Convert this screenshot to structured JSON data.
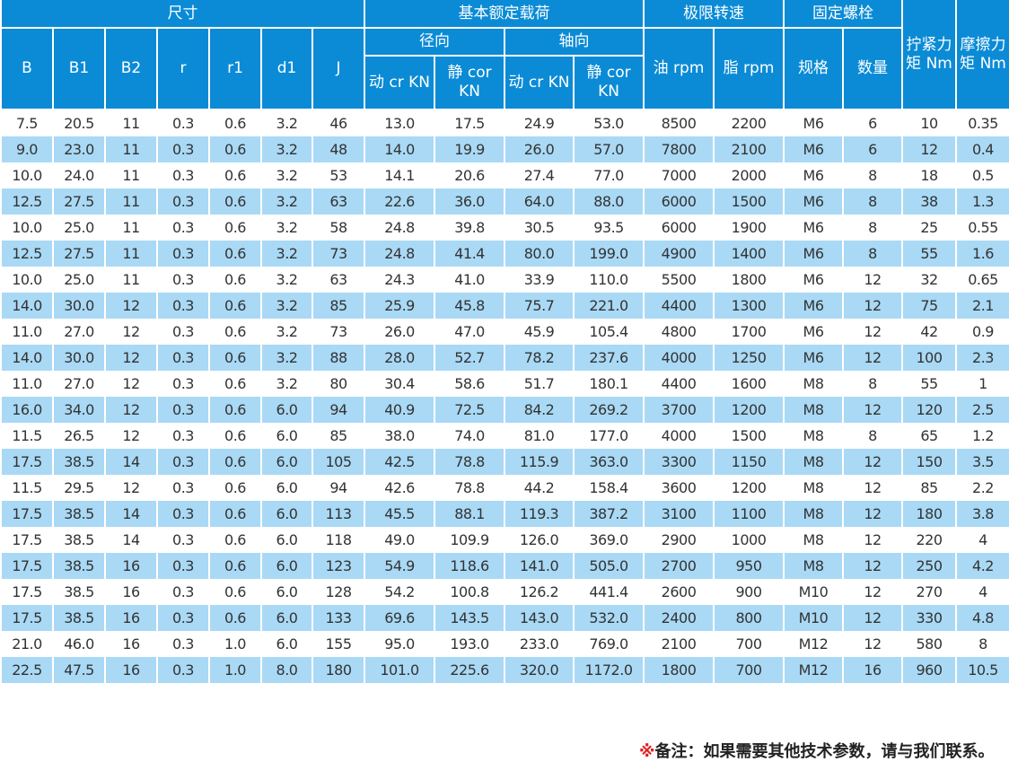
{
  "header": {
    "size": "尺寸",
    "load": "基本额定载荷",
    "speed": "极限转速",
    "bolt": "固定螺栓",
    "tighten": "拧紧力矩 Nm",
    "friction": "摩擦力矩 Nm",
    "radial": "径向",
    "axial": "轴向",
    "cols": [
      "B",
      "B1",
      "B2",
      "r",
      "r1",
      "d1",
      "J"
    ],
    "dyn": "动 cr KN",
    "stat": "静 cor KN",
    "oil": "油 rpm",
    "grease": "脂 rpm",
    "spec": "规格",
    "qty": "数量"
  },
  "colors": {
    "header": "#0b8bd6",
    "alt_row": "#a9d9f5"
  },
  "rows": [
    [
      "7.5",
      "20.5",
      "11",
      "0.3",
      "0.6",
      "3.2",
      "46",
      "13.0",
      "17.5",
      "24.9",
      "53.0",
      "8500",
      "2200",
      "M6",
      "6",
      "10",
      "0.35"
    ],
    [
      "9.0",
      "23.0",
      "11",
      "0.3",
      "0.6",
      "3.2",
      "48",
      "14.0",
      "19.9",
      "26.0",
      "57.0",
      "7800",
      "2100",
      "M6",
      "6",
      "12",
      "0.4"
    ],
    [
      "10.0",
      "24.0",
      "11",
      "0.3",
      "0.6",
      "3.2",
      "53",
      "14.1",
      "20.6",
      "27.4",
      "77.0",
      "7000",
      "2000",
      "M6",
      "8",
      "18",
      "0.5"
    ],
    [
      "12.5",
      "27.5",
      "11",
      "0.3",
      "0.6",
      "3.2",
      "63",
      "22.6",
      "36.0",
      "64.0",
      "88.0",
      "6000",
      "1500",
      "M6",
      "8",
      "38",
      "1.3"
    ],
    [
      "10.0",
      "25.0",
      "11",
      "0.3",
      "0.6",
      "3.2",
      "58",
      "24.8",
      "39.8",
      "30.5",
      "93.5",
      "6000",
      "1900",
      "M6",
      "8",
      "25",
      "0.55"
    ],
    [
      "12.5",
      "27.5",
      "11",
      "0.3",
      "0.6",
      "3.2",
      "73",
      "24.8",
      "41.4",
      "80.0",
      "199.0",
      "4900",
      "1400",
      "M6",
      "8",
      "55",
      "1.6"
    ],
    [
      "10.0",
      "25.0",
      "11",
      "0.3",
      "0.6",
      "3.2",
      "63",
      "24.3",
      "41.0",
      "33.9",
      "110.0",
      "5500",
      "1800",
      "M6",
      "12",
      "32",
      "0.65"
    ],
    [
      "14.0",
      "30.0",
      "12",
      "0.3",
      "0.6",
      "3.2",
      "85",
      "25.9",
      "45.8",
      "75.7",
      "221.0",
      "4400",
      "1300",
      "M6",
      "12",
      "75",
      "2.1"
    ],
    [
      "11.0",
      "27.0",
      "12",
      "0.3",
      "0.6",
      "3.2",
      "73",
      "26.0",
      "47.0",
      "45.9",
      "105.4",
      "4800",
      "1700",
      "M6",
      "12",
      "42",
      "0.9"
    ],
    [
      "14.0",
      "30.0",
      "12",
      "0.3",
      "0.6",
      "3.2",
      "88",
      "28.0",
      "52.7",
      "78.2",
      "237.6",
      "4000",
      "1250",
      "M6",
      "12",
      "100",
      "2.3"
    ],
    [
      "11.0",
      "27.0",
      "12",
      "0.3",
      "0.6",
      "3.2",
      "80",
      "30.4",
      "58.6",
      "51.7",
      "180.1",
      "4400",
      "1600",
      "M8",
      "8",
      "55",
      "1"
    ],
    [
      "16.0",
      "34.0",
      "12",
      "0.3",
      "0.6",
      "6.0",
      "94",
      "40.9",
      "72.5",
      "84.2",
      "269.2",
      "3700",
      "1200",
      "M8",
      "12",
      "120",
      "2.5"
    ],
    [
      "11.5",
      "26.5",
      "12",
      "0.3",
      "0.6",
      "6.0",
      "85",
      "38.0",
      "74.0",
      "81.0",
      "177.0",
      "4000",
      "1500",
      "M8",
      "8",
      "65",
      "1.2"
    ],
    [
      "17.5",
      "38.5",
      "14",
      "0.3",
      "0.6",
      "6.0",
      "105",
      "42.5",
      "78.8",
      "115.9",
      "363.0",
      "3300",
      "1150",
      "M8",
      "12",
      "150",
      "3.5"
    ],
    [
      "11.5",
      "29.5",
      "12",
      "0.3",
      "0.6",
      "6.0",
      "94",
      "42.6",
      "78.8",
      "44.2",
      "158.4",
      "3600",
      "1200",
      "M8",
      "12",
      "85",
      "2.2"
    ],
    [
      "17.5",
      "38.5",
      "14",
      "0.3",
      "0.6",
      "6.0",
      "113",
      "45.5",
      "88.1",
      "119.3",
      "387.2",
      "3100",
      "1100",
      "M8",
      "12",
      "180",
      "3.8"
    ],
    [
      "17.5",
      "38.5",
      "14",
      "0.3",
      "0.6",
      "6.0",
      "118",
      "49.0",
      "109.9",
      "126.0",
      "369.0",
      "2900",
      "1000",
      "M8",
      "12",
      "220",
      "4"
    ],
    [
      "17.5",
      "38.5",
      "16",
      "0.3",
      "0.6",
      "6.0",
      "123",
      "54.9",
      "118.6",
      "141.0",
      "505.0",
      "2700",
      "950",
      "M8",
      "12",
      "250",
      "4.2"
    ],
    [
      "17.5",
      "38.5",
      "16",
      "0.3",
      "0.6",
      "6.0",
      "128",
      "54.2",
      "100.8",
      "126.2",
      "441.4",
      "2600",
      "900",
      "M10",
      "12",
      "270",
      "4"
    ],
    [
      "17.5",
      "38.5",
      "16",
      "0.3",
      "0.6",
      "6.0",
      "133",
      "69.6",
      "143.5",
      "143.0",
      "532.0",
      "2400",
      "800",
      "M10",
      "12",
      "330",
      "4.8"
    ],
    [
      "21.0",
      "46.0",
      "16",
      "0.3",
      "1.0",
      "6.0",
      "155",
      "95.0",
      "193.0",
      "233.0",
      "769.0",
      "2100",
      "700",
      "M12",
      "12",
      "580",
      "8"
    ],
    [
      "22.5",
      "47.5",
      "16",
      "0.3",
      "1.0",
      "8.0",
      "180",
      "101.0",
      "225.6",
      "320.0",
      "1172.0",
      "1800",
      "700",
      "M12",
      "16",
      "960",
      "10.5"
    ]
  ],
  "note": {
    "mark": "※",
    "text": "备注：如果需要其他技术参数，请与我们联系。"
  }
}
